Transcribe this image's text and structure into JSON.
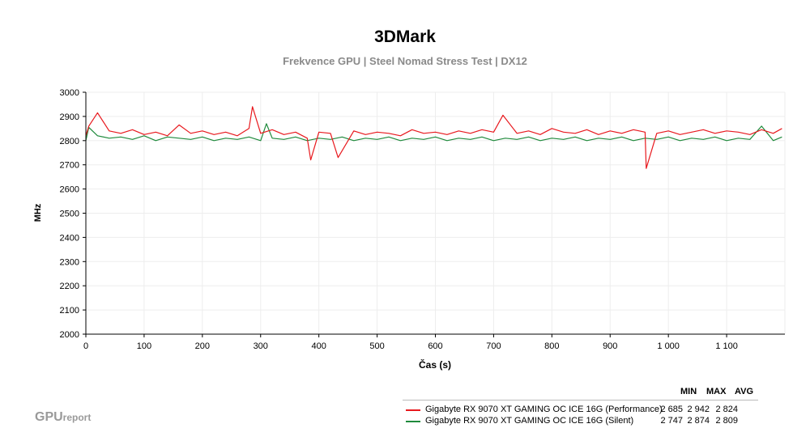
{
  "chart_data": {
    "type": "line",
    "title": "3DMark",
    "subtitle": "Frekvence GPU | Steel Nomad Stress Test | DX12",
    "xlabel": "Čas (s)",
    "ylabel": "MHz",
    "xlim": [
      0,
      1200
    ],
    "ylim": [
      2000,
      3000
    ],
    "x_ticks": [
      0,
      100,
      200,
      300,
      400,
      500,
      600,
      700,
      800,
      900,
      1000,
      1100
    ],
    "x_tick_labels": [
      "0",
      "100",
      "200",
      "300",
      "400",
      "500",
      "600",
      "700",
      "800",
      "900",
      "1 000",
      "1 100"
    ],
    "y_ticks": [
      2000,
      2100,
      2200,
      2300,
      2400,
      2500,
      2600,
      2700,
      2800,
      2900,
      3000
    ],
    "y_tick_labels": [
      "2000",
      "2100",
      "2200",
      "2300",
      "2400",
      "2500",
      "2600",
      "2700",
      "2800",
      "2900",
      "3000"
    ],
    "grid": true,
    "legend_position": "bottom-right",
    "legend_headers": [
      "MIN",
      "MAX",
      "AVG"
    ],
    "series": [
      {
        "name": "Gigabyte RX 9070 XT GAMING OC ICE 16G (Performance)",
        "color": "#e8191e",
        "min": "2 685",
        "max": "2 942",
        "avg": "2 824",
        "x": [
          0,
          5,
          20,
          40,
          60,
          80,
          100,
          120,
          140,
          160,
          180,
          200,
          220,
          240,
          260,
          280,
          286,
          300,
          320,
          340,
          360,
          380,
          386,
          400,
          420,
          433,
          460,
          480,
          500,
          520,
          540,
          560,
          580,
          600,
          620,
          640,
          660,
          680,
          700,
          716,
          740,
          760,
          780,
          800,
          820,
          840,
          860,
          880,
          900,
          920,
          940,
          960,
          962,
          980,
          1000,
          1020,
          1040,
          1060,
          1080,
          1100,
          1120,
          1140,
          1160,
          1180,
          1195
        ],
        "y": [
          2820,
          2860,
          2915,
          2840,
          2830,
          2845,
          2825,
          2835,
          2820,
          2865,
          2830,
          2840,
          2825,
          2835,
          2820,
          2850,
          2940,
          2830,
          2845,
          2825,
          2835,
          2810,
          2720,
          2835,
          2830,
          2730,
          2840,
          2825,
          2835,
          2830,
          2820,
          2845,
          2830,
          2835,
          2825,
          2840,
          2830,
          2845,
          2835,
          2905,
          2830,
          2840,
          2825,
          2850,
          2835,
          2830,
          2845,
          2825,
          2840,
          2830,
          2845,
          2835,
          2685,
          2830,
          2840,
          2825,
          2835,
          2845,
          2830,
          2840,
          2835,
          2825,
          2845,
          2830,
          2850
        ]
      },
      {
        "name": "Gigabyte RX 9070 XT GAMING OC ICE 16G (Silent)",
        "color": "#1f8a3c",
        "min": "2 747",
        "max": "2 874",
        "avg": "2 809",
        "x": [
          0,
          5,
          20,
          40,
          60,
          80,
          100,
          120,
          140,
          160,
          180,
          200,
          220,
          240,
          260,
          280,
          300,
          310,
          320,
          340,
          360,
          380,
          400,
          420,
          440,
          460,
          480,
          500,
          520,
          540,
          560,
          580,
          600,
          620,
          640,
          660,
          680,
          700,
          720,
          740,
          760,
          780,
          800,
          820,
          840,
          860,
          880,
          900,
          920,
          940,
          960,
          980,
          1000,
          1020,
          1040,
          1060,
          1080,
          1100,
          1120,
          1140,
          1160,
          1180,
          1195
        ],
        "y": [
          2800,
          2855,
          2820,
          2810,
          2815,
          2805,
          2820,
          2800,
          2815,
          2810,
          2805,
          2815,
          2800,
          2810,
          2805,
          2815,
          2800,
          2870,
          2810,
          2805,
          2815,
          2800,
          2810,
          2805,
          2815,
          2800,
          2810,
          2805,
          2815,
          2800,
          2810,
          2805,
          2815,
          2800,
          2810,
          2805,
          2815,
          2800,
          2810,
          2805,
          2815,
          2800,
          2810,
          2805,
          2815,
          2800,
          2810,
          2805,
          2815,
          2800,
          2810,
          2805,
          2815,
          2800,
          2810,
          2805,
          2815,
          2800,
          2810,
          2805,
          2860,
          2800,
          2815
        ]
      }
    ]
  },
  "watermark": {
    "main": "GPU",
    "sub": "report"
  }
}
